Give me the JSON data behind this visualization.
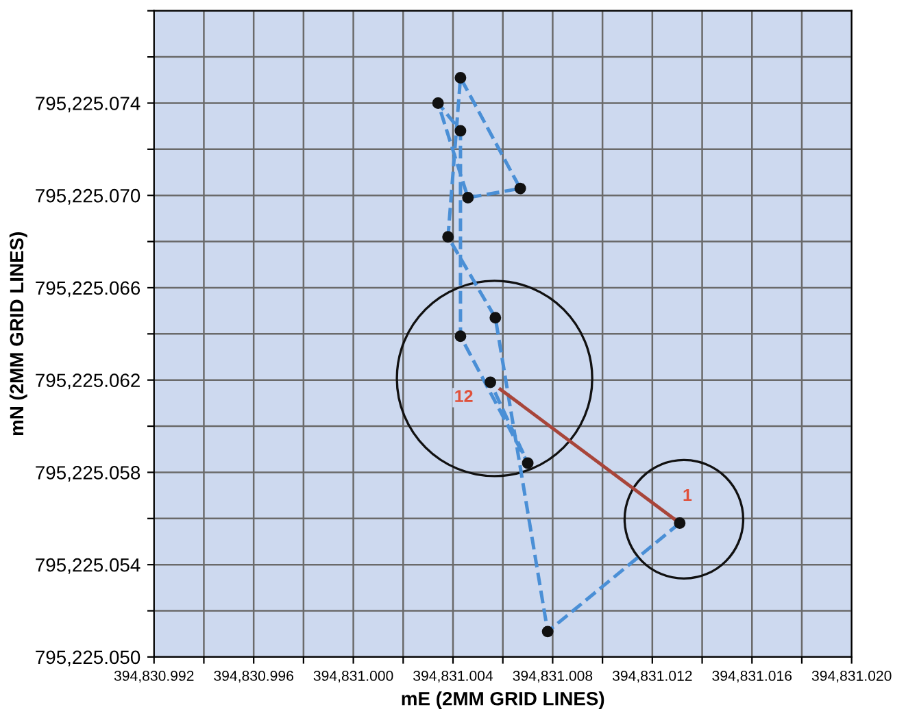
{
  "chart_data": {
    "type": "line",
    "xlabel": "mE (2MM GRID LINES)",
    "ylabel": "mN (2MM GRID LINES)",
    "xlim": [
      394830.992,
      394831.02
    ],
    "ylim": [
      795225.05,
      795225.078
    ],
    "xticks": [
      {
        "value": 394830.992,
        "label": "394,830.992"
      },
      {
        "value": 394830.994,
        "label": null
      },
      {
        "value": 394830.996,
        "label": "394,830.996"
      },
      {
        "value": 394830.998,
        "label": null
      },
      {
        "value": 394831.0,
        "label": "394,831.000"
      },
      {
        "value": 394831.002,
        "label": null
      },
      {
        "value": 394831.004,
        "label": "394,831.004"
      },
      {
        "value": 394831.006,
        "label": null
      },
      {
        "value": 394831.008,
        "label": "394,831.008"
      },
      {
        "value": 394831.01,
        "label": null
      },
      {
        "value": 394831.012,
        "label": "394,831.012"
      },
      {
        "value": 394831.014,
        "label": null
      },
      {
        "value": 394831.016,
        "label": "394,831.016"
      },
      {
        "value": 394831.018,
        "label": null
      },
      {
        "value": 394831.02,
        "label": "394,831.020"
      }
    ],
    "yticks": [
      {
        "value": 795225.05,
        "label": "795,225.050"
      },
      {
        "value": 795225.052,
        "label": null
      },
      {
        "value": 795225.054,
        "label": "795,225.054"
      },
      {
        "value": 795225.056,
        "label": null
      },
      {
        "value": 795225.058,
        "label": "795,225.058"
      },
      {
        "value": 795225.06,
        "label": null
      },
      {
        "value": 795225.062,
        "label": "795,225.062"
      },
      {
        "value": 795225.064,
        "label": null
      },
      {
        "value": 795225.066,
        "label": "795,225.066"
      },
      {
        "value": 795225.068,
        "label": null
      },
      {
        "value": 795225.07,
        "label": "795,225.070"
      },
      {
        "value": 795225.072,
        "label": null
      },
      {
        "value": 795225.074,
        "label": "795,225.074"
      },
      {
        "value": 795225.076,
        "label": null
      },
      {
        "value": 795225.078,
        "label": null
      }
    ],
    "grid": true,
    "series": [
      {
        "color": "#4a8fd6",
        "line_style": "dashed",
        "marker": "none",
        "x": [
          394831.0131,
          394831.0078,
          394831.0057,
          394831.0038,
          394831.0043,
          394831.0067,
          394831.0046,
          394831.0034,
          394831.0043,
          394831.0043,
          394831.007,
          394831.0055
        ],
        "values": [
          795225.0558,
          795225.0511,
          795225.0647,
          795225.0682,
          795225.0751,
          795225.0703,
          795225.0699,
          795225.074,
          795225.0728,
          795225.0639,
          795225.0584,
          795225.0619
        ]
      },
      {
        "type": "scatter",
        "color": "#111111",
        "marker": "circle",
        "x": [
          394831.0131,
          394831.0078,
          394831.0057,
          394831.0038,
          394831.0043,
          394831.0067,
          394831.0046,
          394831.0034,
          394831.0043,
          394831.0043,
          394831.007,
          394831.0055
        ],
        "values": [
          795225.0558,
          795225.0511,
          795225.0647,
          795225.0682,
          795225.0751,
          795225.0703,
          795225.0699,
          795225.074,
          795225.0728,
          795225.0639,
          795225.0584,
          795225.0619
        ]
      },
      {
        "type": "line",
        "color": "#a8453a",
        "line_style": "solid",
        "marker": "none",
        "x": [
          394831.0131,
          394831.0059
        ],
        "values": [
          795225.0558,
          795225.0616
        ]
      }
    ],
    "annotations": [
      {
        "text": "1",
        "x": 394831.0131,
        "y": 795225.0558
      },
      {
        "text": "12",
        "x": 394831.0055,
        "y": 795225.0619
      }
    ]
  }
}
